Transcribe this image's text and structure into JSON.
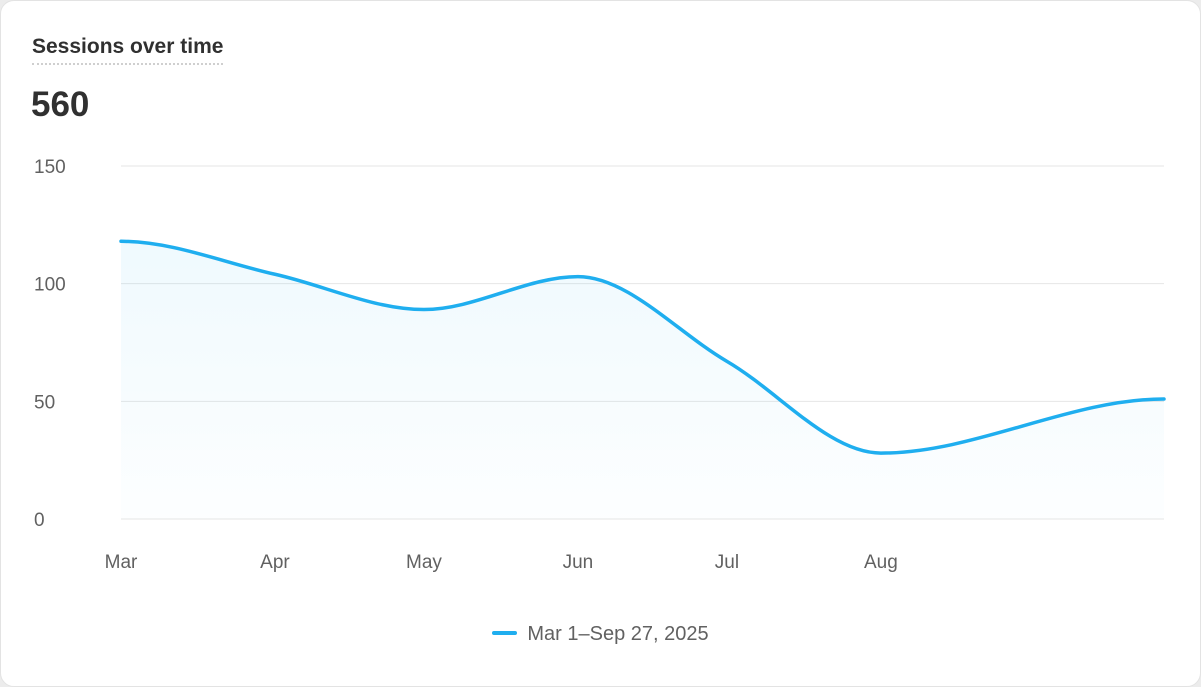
{
  "card": {
    "title": "Sessions over time",
    "value": "560"
  },
  "colors": {
    "series": "#1faeef",
    "grid": "#e6e6e6",
    "text": "#616161"
  },
  "chart_data": {
    "type": "area",
    "title": "Sessions over time",
    "x_tick_labels": [
      "Mar",
      "Apr",
      "May",
      "Jun",
      "Jul",
      "Aug"
    ],
    "y_ticks": [
      0,
      50,
      100,
      150
    ],
    "ylim": [
      0,
      150
    ],
    "xlim": [
      "2025-03-01",
      "2025-09-27"
    ],
    "grid": true,
    "legend_position": "bottom",
    "series": [
      {
        "name": "Mar 1–Sep 27, 2025",
        "x": [
          "2025-03-01",
          "2025-04-01",
          "2025-05-01",
          "2025-06-01",
          "2025-07-01",
          "2025-08-01",
          "2025-09-27"
        ],
        "y": [
          118,
          104,
          89,
          103,
          67,
          28,
          51
        ]
      }
    ]
  }
}
